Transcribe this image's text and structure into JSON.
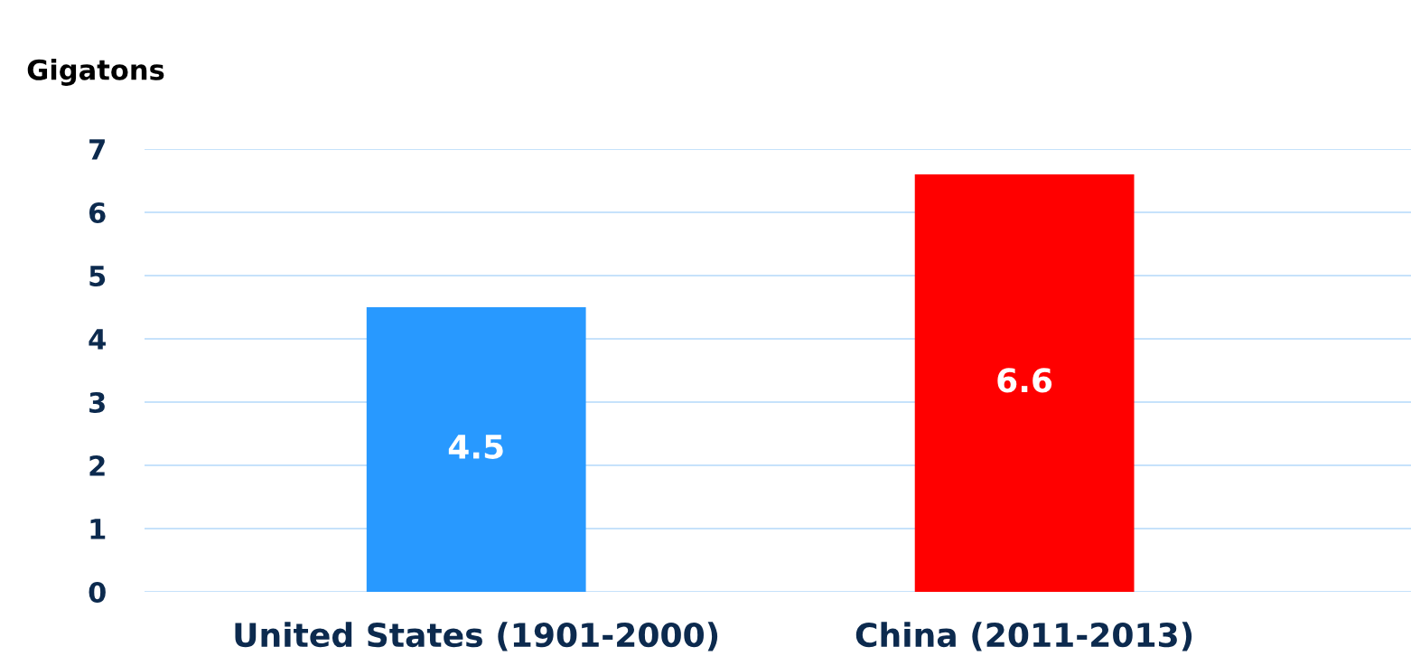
{
  "chart_data": {
    "type": "bar",
    "ylabel": "Gigatons",
    "categories": [
      "United States (1901-2000)",
      "China (2011-2013)"
    ],
    "values": [
      4.5,
      6.6
    ],
    "colors": [
      "#2899ff",
      "#ff0000"
    ],
    "ylim": [
      0,
      7
    ],
    "yticks": [
      0,
      1,
      2,
      3,
      4,
      5,
      6,
      7
    ],
    "grid": "y",
    "data_labels": true
  }
}
